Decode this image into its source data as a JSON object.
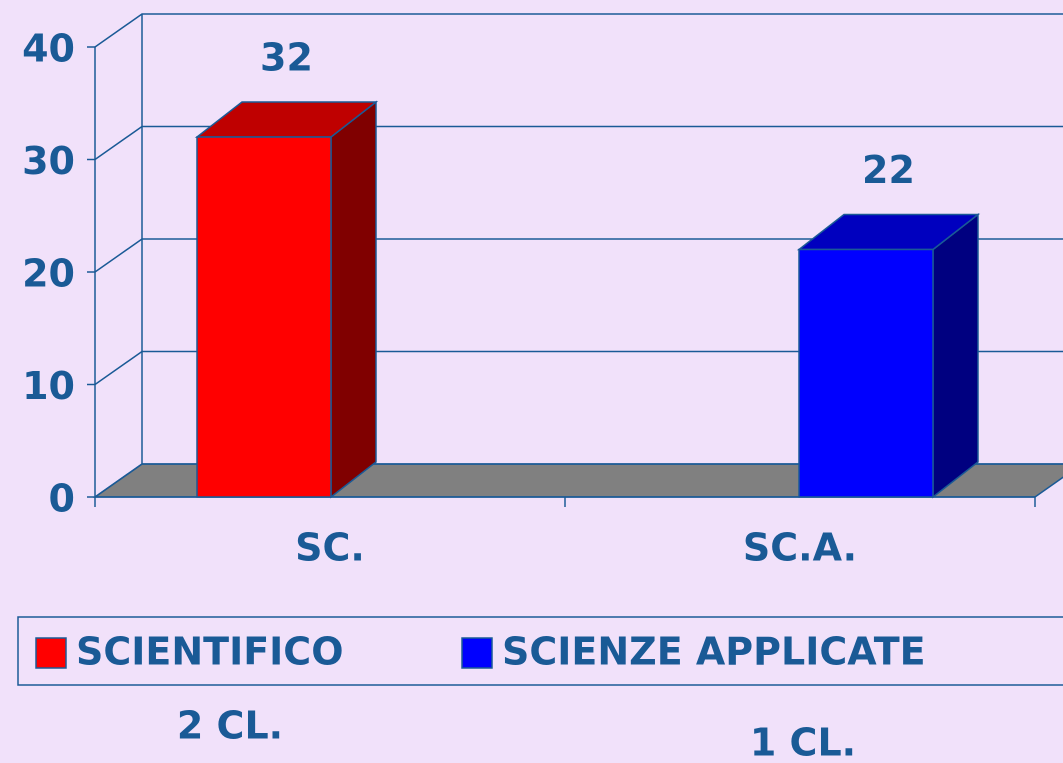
{
  "chart_data": {
    "type": "bar3d",
    "categories": [
      "SC.",
      "SC.A."
    ],
    "series": [
      {
        "name": "SCIENTIFICO",
        "color": "#ff0000",
        "values": [
          32,
          null
        ]
      },
      {
        "name": "SCIENZE APPLICATE",
        "color": "#0000ff",
        "values": [
          null,
          22
        ]
      }
    ],
    "ylim": [
      0,
      40
    ],
    "yticks": [
      0,
      10,
      20,
      30,
      40
    ],
    "grid": true,
    "annotations": [
      "2 CL.",
      "1 CL."
    ]
  }
}
